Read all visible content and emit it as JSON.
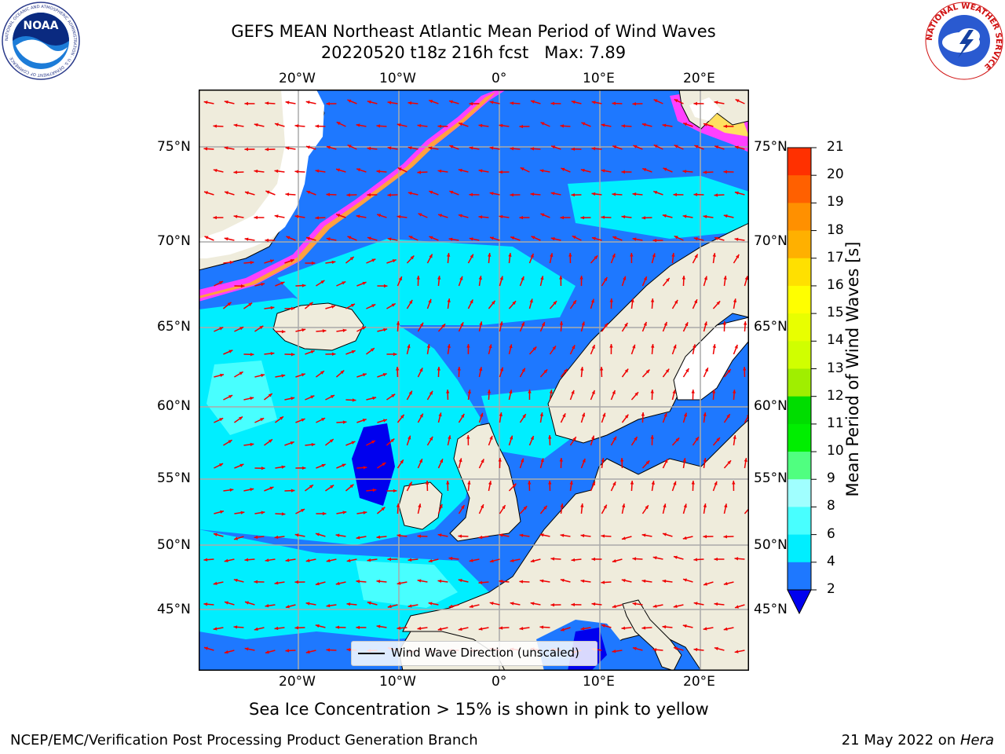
{
  "title_line1": "GEFS MEAN Northeast Atlantic Mean Period of Wind Waves",
  "title_line2": "20220520 t18z 216h fcst   Max: 7.89",
  "map": {
    "lon_labels_top": [
      "20°W",
      "10°W",
      "0°",
      "10°E",
      "20°E"
    ],
    "lon_labels_bottom": [
      "20°W",
      "10°W",
      "0°",
      "10°E",
      "20°E"
    ],
    "lat_labels_left": [
      "75°N",
      "70°N",
      "65°N",
      "60°N",
      "55°N",
      "50°N",
      "45°N"
    ],
    "lat_labels_right": [
      "75°N",
      "70°N",
      "65°N",
      "60°N",
      "55°N",
      "50°N",
      "45°N"
    ],
    "colors": {
      "land": "#efecdc",
      "ocean_2_4": "#1e78ff",
      "ocean_4_6": "#00eeff",
      "ocean_6_8": "#48ffff",
      "ocean_lt2": "#0000ee",
      "ice_pink": "#ff40ff",
      "ice_orange": "#ffa040",
      "ice_yellow": "#ffe060",
      "arrow": "#ee0000",
      "grid": "#aaaaaa"
    }
  },
  "legend": {
    "label": "Wind Wave Direction (unscaled)"
  },
  "colorbar": {
    "title": "Mean Period of Wind Waves [s]",
    "ticks": [
      "2",
      "4",
      "6",
      "8",
      "9",
      "10",
      "11",
      "12",
      "13",
      "14",
      "15",
      "16",
      "17",
      "18",
      "19",
      "20",
      "21"
    ],
    "colors": [
      "#1e78ff",
      "#00eeff",
      "#48ffff",
      "#a0ffff",
      "#50ff80",
      "#00ee00",
      "#00dd00",
      "#a0ee00",
      "#d0ff00",
      "#e8ff00",
      "#ffff00",
      "#ffe000",
      "#ffb000",
      "#ff9000",
      "#ff6000",
      "#ff3000",
      "#ff0000"
    ],
    "under_color": "#0000ee"
  },
  "note": "Sea Ice Concentration > 15% is shown in pink to yellow",
  "footer_left": "NCEP/EMC/Verification Post Processing Product Generation Branch",
  "footer_right_prefix": "21 May 2022 on ",
  "footer_right_host": "Hera",
  "logos": {
    "noaa_text": "NOAA",
    "noaa_ring": "NATIONAL OCEANIC AND ATMOSPHERIC ADMINISTRATION · U.S. DEPARTMENT OF COMMERCE",
    "nws_ring": "NATIONAL WEATHER SERVICE"
  }
}
